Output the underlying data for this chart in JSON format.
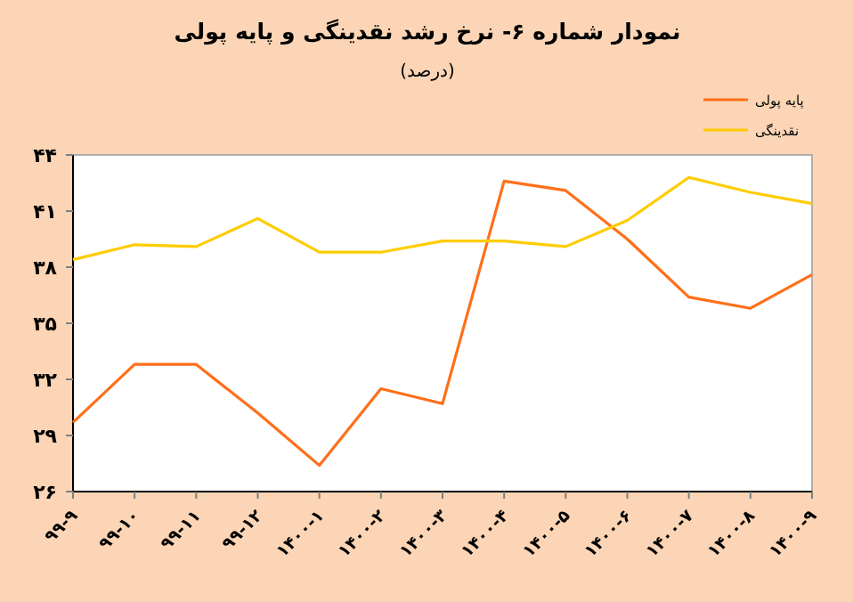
{
  "chart_data": {
    "type": "line",
    "title": "نمودار شماره ۶- نرخ رشد نقدینگی و پایه پولی",
    "subtitle": "(درصد)",
    "categories": [
      "۹۹-۹",
      "۹۹-۱۰",
      "۹۹-۱۱",
      "۹۹-۱۲",
      "۱۴۰۰-۱",
      "۱۴۰۰-۲",
      "۱۴۰۰-۳",
      "۱۴۰۰-۴",
      "۱۴۰۰-۵",
      "۱۴۰۰-۶",
      "۱۴۰۰-۷",
      "۱۴۰۰-۸",
      "۱۴۰۰-۹"
    ],
    "series": [
      {
        "name": "پایه پولی",
        "color": "#ff6f1a",
        "values": [
          29.7,
          32.8,
          32.8,
          30.2,
          27.4,
          31.5,
          30.7,
          42.6,
          42.1,
          39.5,
          36.4,
          35.8,
          37.6
        ]
      },
      {
        "name": "نقدینگی",
        "color": "#ffcc00",
        "values": [
          38.4,
          39.2,
          39.1,
          40.6,
          38.8,
          38.8,
          39.4,
          39.4,
          39.1,
          40.5,
          42.8,
          42.0,
          41.4
        ]
      }
    ],
    "ylim": [
      26,
      44
    ],
    "yticks": [
      {
        "value": 26,
        "label": "۲۶"
      },
      {
        "value": 29,
        "label": "۲۹"
      },
      {
        "value": 32,
        "label": "۳۲"
      },
      {
        "value": 35,
        "label": "۳۵"
      },
      {
        "value": 38,
        "label": "۳۸"
      },
      {
        "value": 41,
        "label": "۴۱"
      },
      {
        "value": 44,
        "label": "۴۴"
      }
    ],
    "grid": false,
    "legend": "top right"
  }
}
